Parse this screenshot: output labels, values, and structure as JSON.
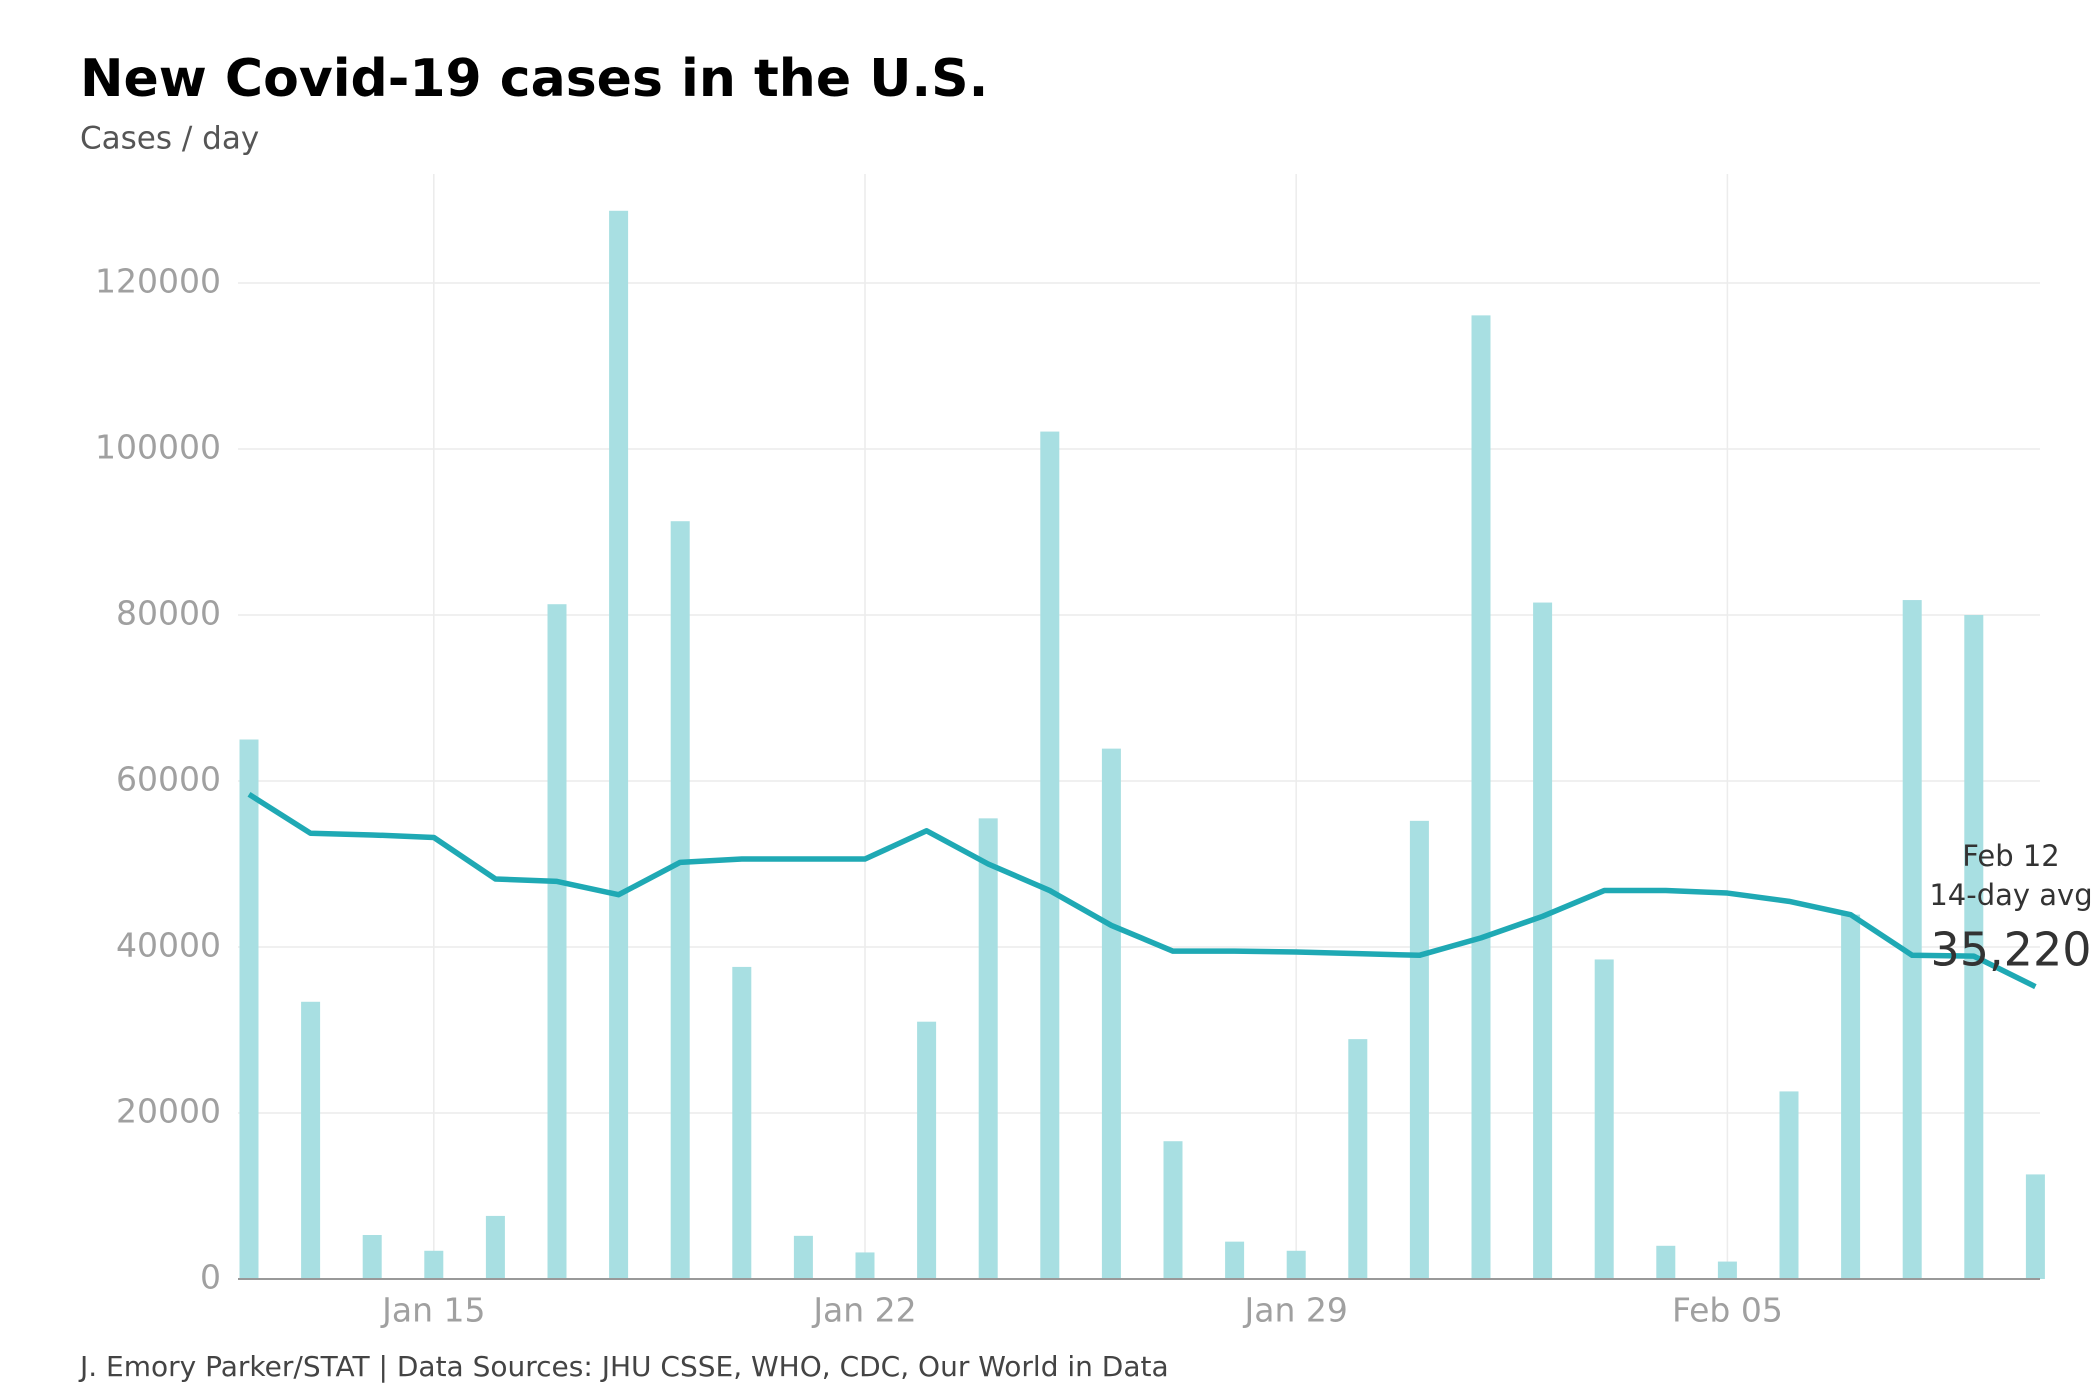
{
  "chart_data": {
    "type": "bar",
    "title": "New Covid-19 cases in the U.S.",
    "subtitle": "Cases / day",
    "source": "J. Emory Parker/STAT | Data Sources: JHU CSSE, WHO, CDC, Our World in Data",
    "categories": [
      null,
      null,
      null,
      "Jan 15",
      null,
      null,
      null,
      null,
      null,
      null,
      "Jan 22",
      null,
      null,
      null,
      null,
      null,
      null,
      "Jan 29",
      null,
      null,
      null,
      null,
      null,
      null,
      "Feb 05",
      null,
      null,
      null,
      null,
      null
    ],
    "series": [
      {
        "type": "bar",
        "color": "#a8dfe2",
        "values": [
          65000,
          33400,
          5300,
          3400,
          7600,
          81300,
          128700,
          91300,
          37600,
          5200,
          3200,
          31000,
          55500,
          102100,
          63900,
          16600,
          4500,
          3400,
          28900,
          55200,
          116100,
          81500,
          38500,
          4000,
          2100,
          22600,
          43900,
          81800,
          80000,
          12600
        ]
      },
      {
        "type": "line",
        "color": "#1fa9b4",
        "values": [
          58400,
          53700,
          53500,
          53200,
          48200,
          47900,
          46300,
          50200,
          50600,
          50600,
          50600,
          54000,
          50000,
          46800,
          42600,
          39500,
          39500,
          39400,
          39200,
          39000,
          41100,
          43700,
          46800,
          46800,
          46500,
          45500,
          43900,
          39000,
          38900,
          35220
        ],
        "value_labels": [
          null,
          null,
          null,
          null,
          null,
          null,
          null,
          null,
          null,
          null,
          null,
          null,
          null,
          null,
          null,
          null,
          null,
          null,
          null,
          null,
          null,
          null,
          null,
          null,
          null,
          null,
          null,
          null,
          null,
          "35,220"
        ]
      }
    ],
    "annotation": {
      "date": "Feb 12",
      "text": "14-day avg"
    },
    "ylim": [
      0,
      130000
    ],
    "yticks": [
      0,
      20000,
      40000,
      60000,
      80000,
      100000,
      120000
    ],
    "grid": true
  }
}
